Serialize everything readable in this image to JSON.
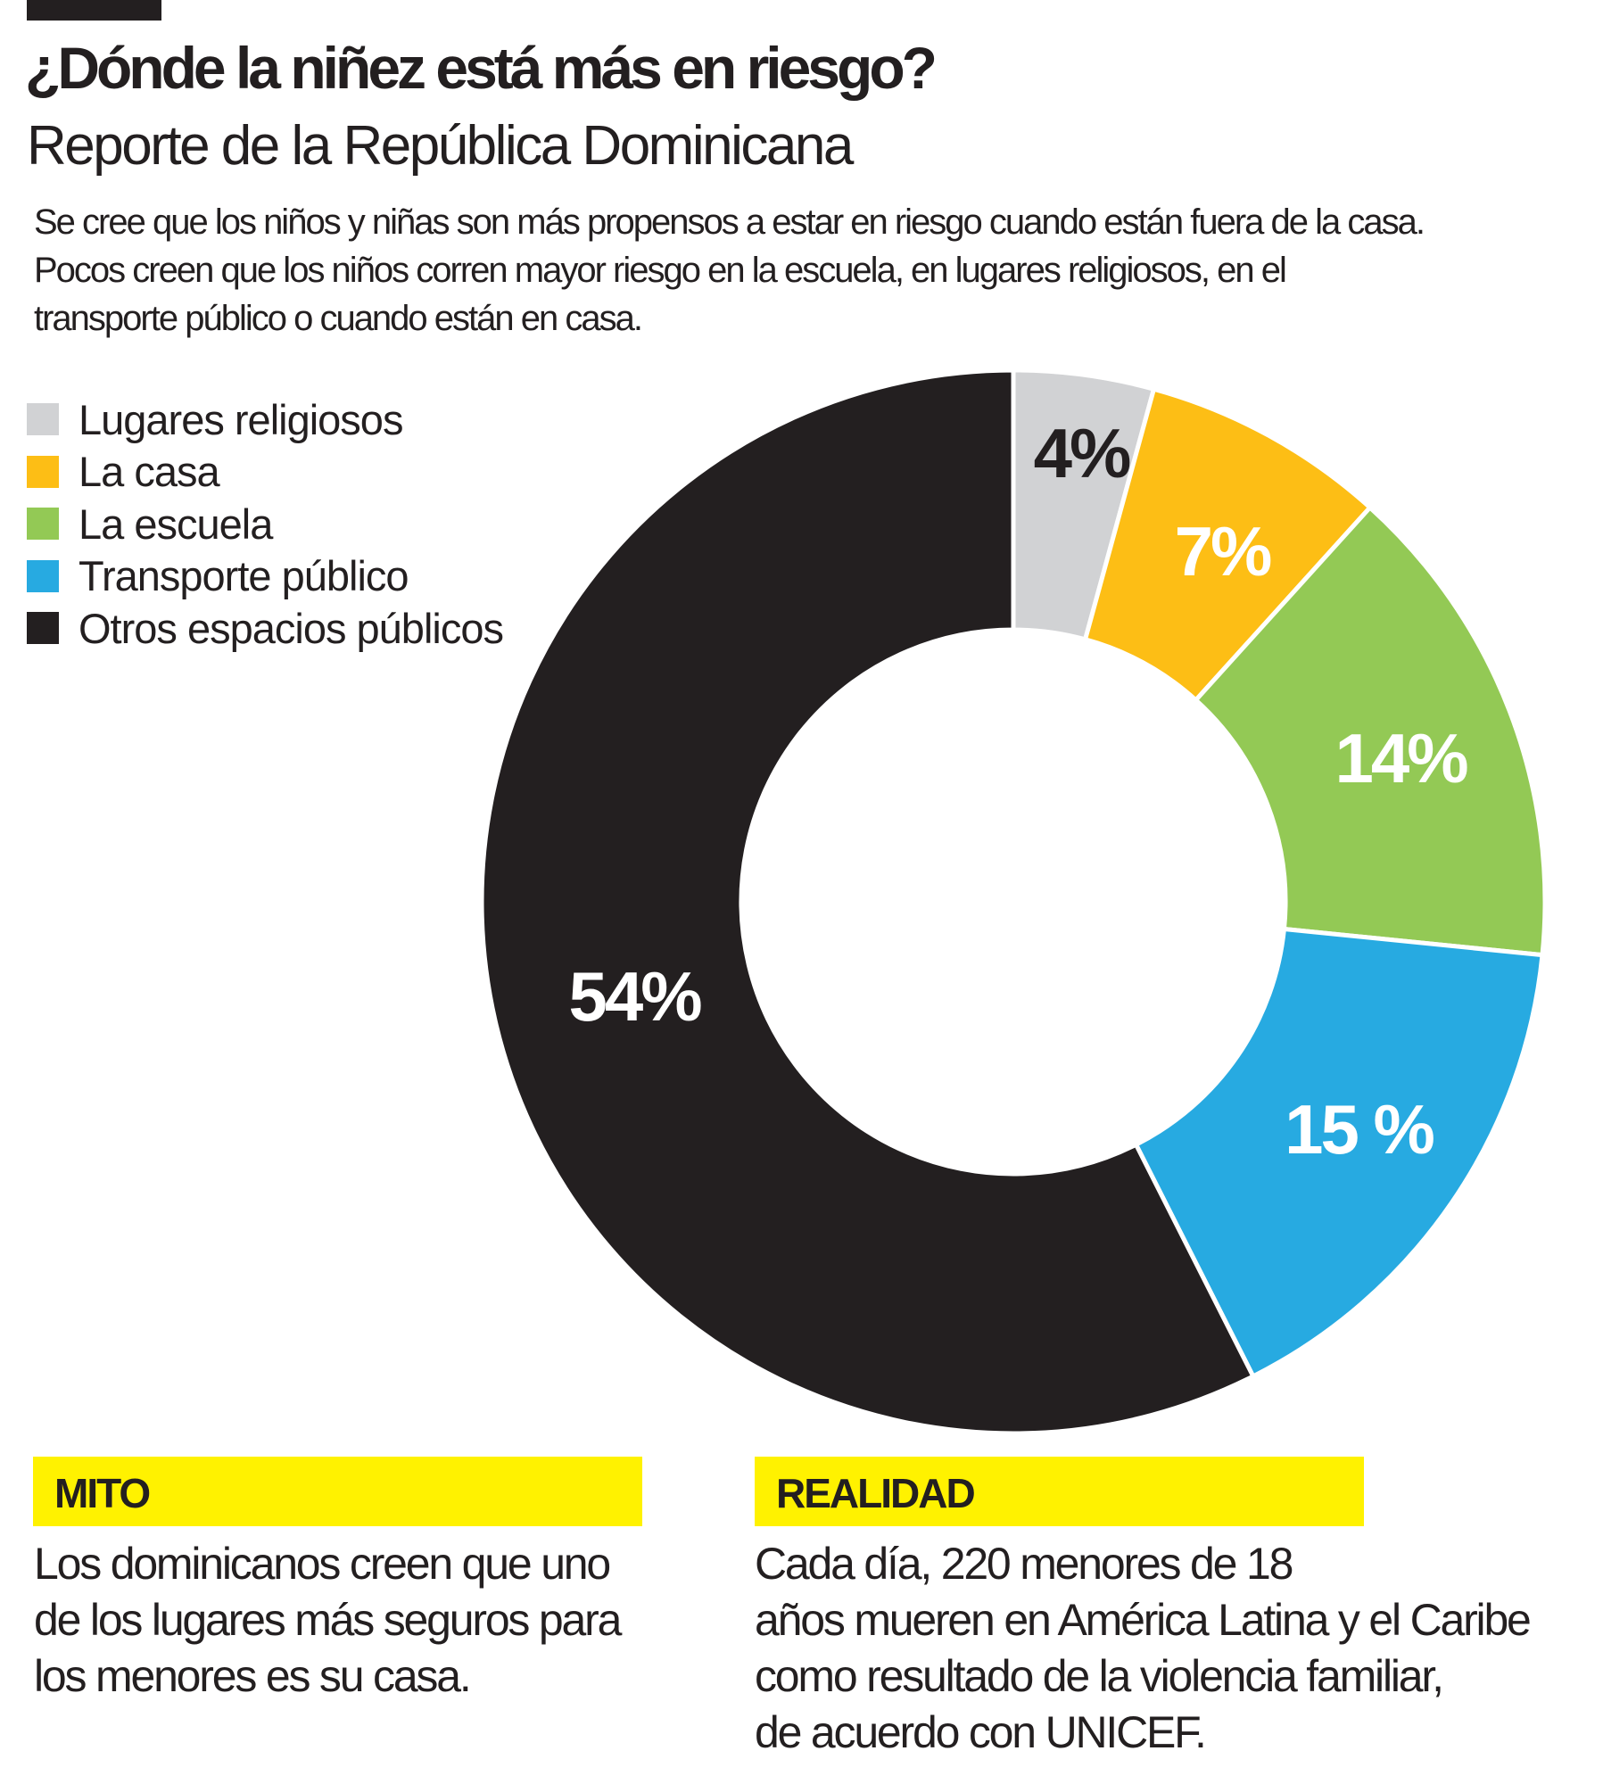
{
  "title": "¿Dónde la niñez está más en riesgo?",
  "subtitle": "Reporte de la República Dominicana",
  "intro": [
    "Se cree que los niños y niñas son más propensos a estar en riesgo cuando están fuera de la casa.",
    "Pocos creen que los niños corren mayor riesgo en la escuela, en lugares religiosos, en el",
    "transporte público o cuando están en casa."
  ],
  "chart_data": {
    "type": "pie",
    "donut": true,
    "legend_position": "top-left",
    "categories": [
      "Lugares religiosos",
      "La casa",
      "La escuela",
      "Transporte público",
      "Otros espacios públicos"
    ],
    "values": [
      4,
      7,
      14,
      15,
      54
    ],
    "labels": [
      "4%",
      "7%",
      "14%",
      "15 %",
      "54%"
    ],
    "colors": [
      "#d1d2d4",
      "#fdbe15",
      "#93c955",
      "#27aae1",
      "#231f20"
    ],
    "label_colors": [
      "#231f20",
      "#ffffff",
      "#ffffff",
      "#ffffff",
      "#ffffff"
    ]
  },
  "mito": {
    "heading": "MITO",
    "lines": [
      "Los dominicanos creen que uno",
      "de los lugares más seguros para",
      "los menores es su casa."
    ]
  },
  "realidad": {
    "heading": "REALIDAD",
    "lines": [
      "Cada día, 220 menores de 18",
      "años mueren en América Latina y el Caribe",
      "como resultado de la violencia familiar,",
      "de acuerdo con UNICEF."
    ]
  },
  "colors": {
    "highlight": "#fff200",
    "text": "#231f20"
  }
}
